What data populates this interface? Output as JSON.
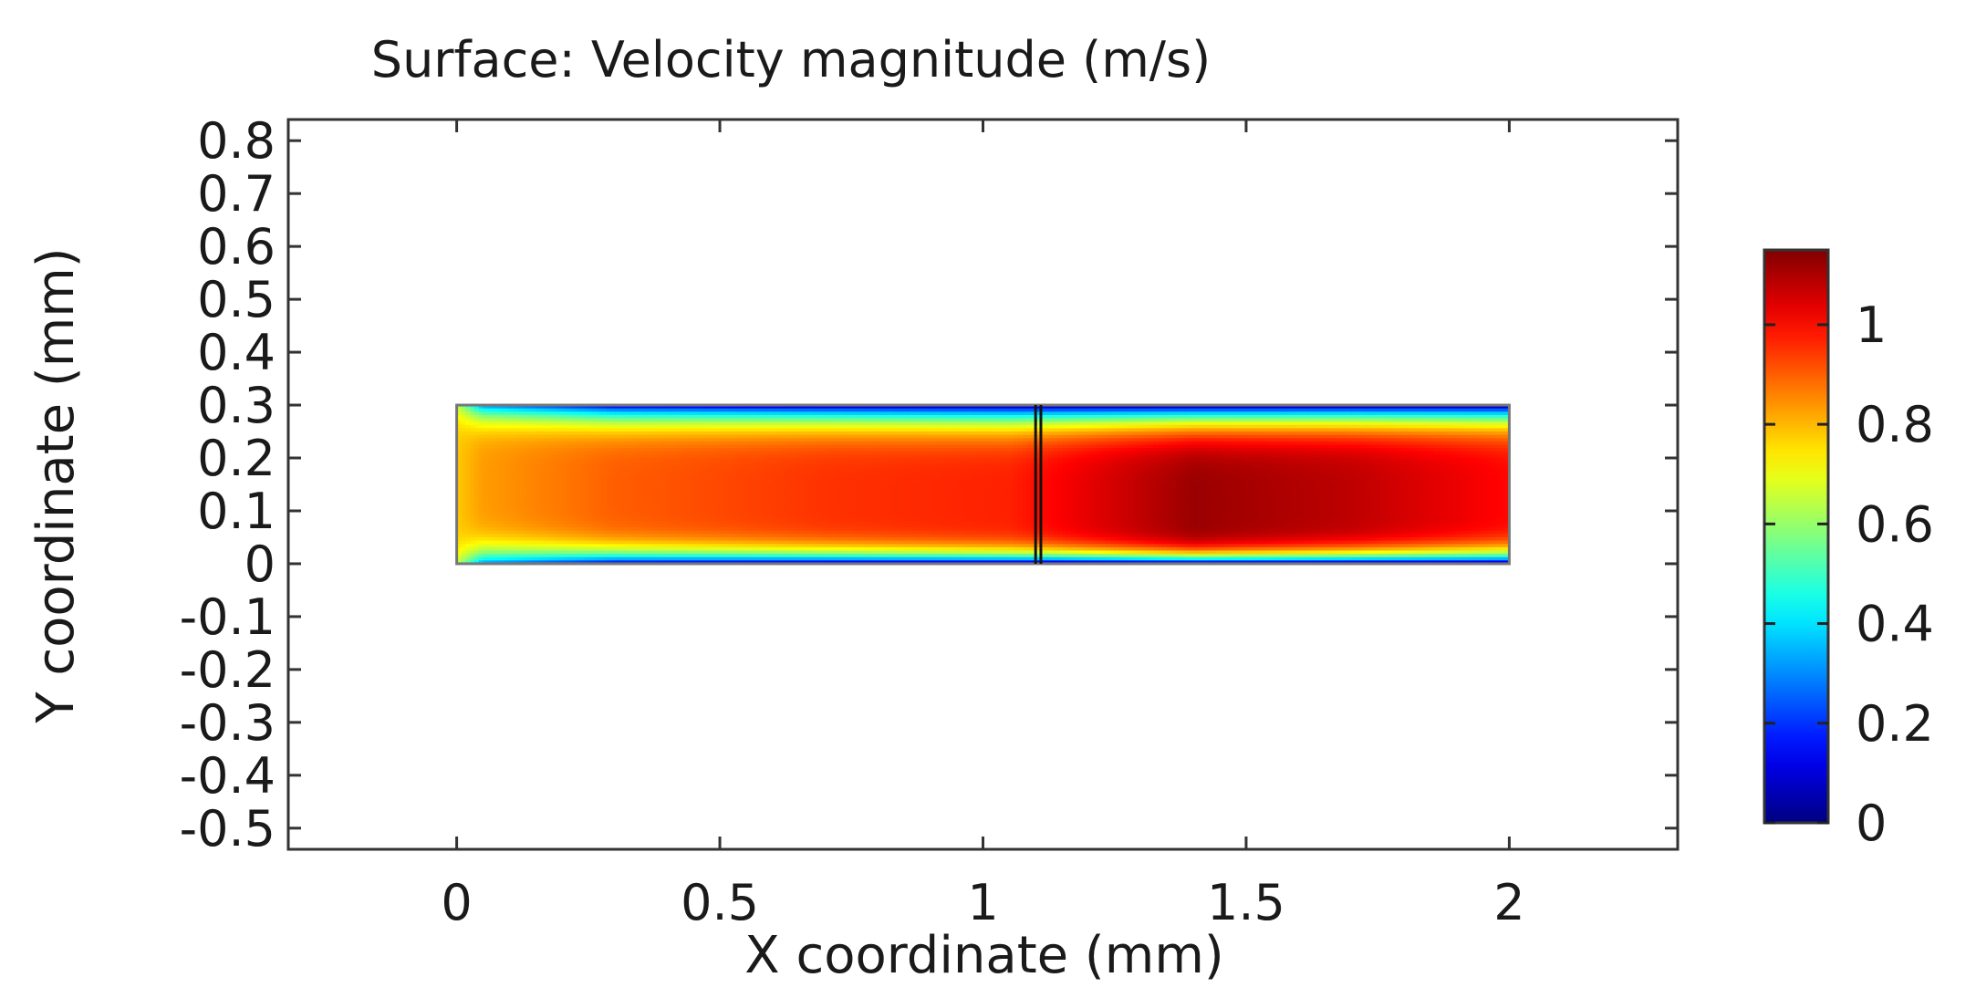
{
  "chart_data": {
    "type": "heatmap",
    "title": "Surface: Velocity magnitude (m/s)",
    "xlabel": "X coordinate (mm)",
    "ylabel": "Y coordinate (mm)",
    "xlim": [
      -0.32,
      2.32
    ],
    "ylim": [
      -0.54,
      0.84
    ],
    "xticks": [
      {
        "value": 0,
        "label": "0"
      },
      {
        "value": 0.5,
        "label": "0.5"
      },
      {
        "value": 1,
        "label": "1"
      },
      {
        "value": 1.5,
        "label": "1.5"
      },
      {
        "value": 2,
        "label": "2"
      }
    ],
    "yticks": [
      {
        "value": 0.8,
        "label": "0.8"
      },
      {
        "value": 0.7,
        "label": "0.7"
      },
      {
        "value": 0.6,
        "label": "0.6"
      },
      {
        "value": 0.5,
        "label": "0.5"
      },
      {
        "value": 0.4,
        "label": "0.4"
      },
      {
        "value": 0.3,
        "label": "0.3"
      },
      {
        "value": 0.2,
        "label": "0.2"
      },
      {
        "value": 0.1,
        "label": "0.1"
      },
      {
        "value": 0,
        "label": "0"
      },
      {
        "value": -0.1,
        "label": "-0.1"
      },
      {
        "value": -0.2,
        "label": "-0.2"
      },
      {
        "value": -0.3,
        "label": "-0.3"
      },
      {
        "value": -0.4,
        "label": "-0.4"
      },
      {
        "value": -0.5,
        "label": "-0.5"
      }
    ],
    "domain": {
      "x_range": [
        0,
        2
      ],
      "y_range": [
        0,
        0.3
      ],
      "interface_x": [
        1.1,
        1.11
      ]
    },
    "velocity_profiles": [
      {
        "x": 0.0,
        "center_y": 0.15,
        "core": 0.78,
        "edge": 0.65
      },
      {
        "x": 0.05,
        "center_y": 0.15,
        "core": 0.83,
        "edge": 0.3
      },
      {
        "x": 0.3,
        "center_y": 0.13,
        "core": 0.9,
        "edge": 0.1
      },
      {
        "x": 0.7,
        "center_y": 0.12,
        "core": 0.95,
        "edge": 0.05
      },
      {
        "x": 1.05,
        "center_y": 0.11,
        "core": 0.97,
        "edge": 0.03
      },
      {
        "x": 1.12,
        "center_y": 0.11,
        "core": 1.0,
        "edge": 0.02
      },
      {
        "x": 1.4,
        "center_y": 0.1,
        "core": 1.12,
        "edge": 0.02
      },
      {
        "x": 1.7,
        "center_y": 0.11,
        "core": 1.08,
        "edge": 0.02
      },
      {
        "x": 2.0,
        "center_y": 0.12,
        "core": 1.0,
        "edge": 0.02
      }
    ],
    "colorbar": {
      "min": 0,
      "max": 1.15,
      "colormap": "jet",
      "ticks": [
        {
          "value": 0,
          "label": "0"
        },
        {
          "value": 0.2,
          "label": "0.2"
        },
        {
          "value": 0.4,
          "label": "0.4"
        },
        {
          "value": 0.6,
          "label": "0.6"
        },
        {
          "value": 0.8,
          "label": "0.8"
        },
        {
          "value": 1,
          "label": "1"
        }
      ]
    },
    "grid": false
  }
}
